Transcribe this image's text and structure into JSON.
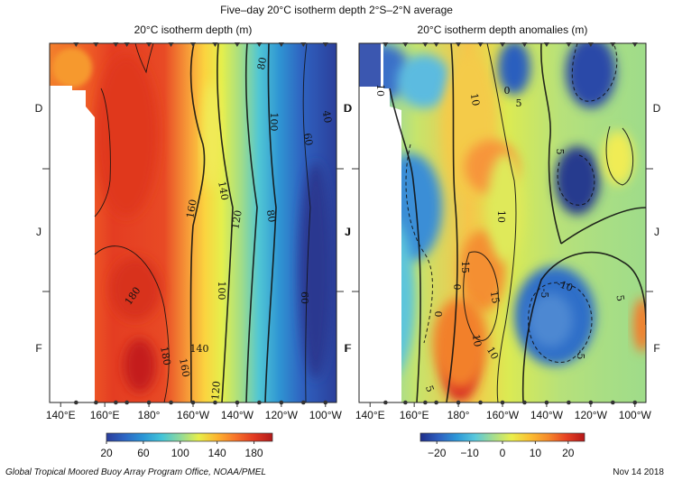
{
  "chart_data": [
    {
      "type": "heatmap",
      "title": "20°C isotherm depth (m)",
      "x_tick_labels": [
        "140°E",
        "160°E",
        "180°",
        "160°W",
        "140°W",
        "120°W",
        "100°W"
      ],
      "x_ticks_lon_east": [
        140,
        160,
        180,
        200,
        220,
        240,
        260
      ],
      "xlim_lon_east": [
        135,
        265
      ],
      "y_tick_labels": [
        "D",
        "J",
        "F"
      ],
      "colorbar": {
        "ticks": [
          20,
          60,
          100,
          140,
          180
        ],
        "range": [
          20,
          200
        ],
        "colors": [
          "#2b3d9b",
          "#2d66c4",
          "#2a96d6",
          "#43c4d8",
          "#8fd99b",
          "#e7ef4a",
          "#fdb42f",
          "#f7732a",
          "#e23a22",
          "#b21a1a"
        ]
      },
      "contour_labels": [
        "180",
        "180",
        "160",
        "160",
        "140",
        "140",
        "120",
        "120",
        "100",
        "100",
        "80",
        "80",
        "60",
        "60",
        "40"
      ]
    },
    {
      "type": "heatmap",
      "title": "20°C isotherm depth anomalies (m)",
      "x_tick_labels": [
        "140°E",
        "160°E",
        "180°",
        "160°W",
        "140°W",
        "120°W",
        "100°W"
      ],
      "x_ticks_lon_east": [
        140,
        160,
        180,
        200,
        220,
        240,
        260
      ],
      "xlim_lon_east": [
        135,
        265
      ],
      "y_tick_labels": [
        "D",
        "J",
        "F"
      ],
      "colorbar": {
        "ticks": [
          -20,
          -10,
          0,
          10,
          20
        ],
        "range": [
          -25,
          25
        ],
        "colors": [
          "#1f2e8a",
          "#2e5fc0",
          "#2d98d8",
          "#59c8dc",
          "#a5dd8e",
          "#eaef4c",
          "#fbbf32",
          "#f68a2b",
          "#e74224",
          "#b51718"
        ]
      },
      "contour_labels": [
        "10",
        "10",
        "10",
        "15",
        "15",
        "10",
        "10",
        "5",
        "5",
        "5",
        "0",
        "0",
        "-5",
        "-5",
        "-10",
        "5",
        "0"
      ]
    }
  ],
  "header": {
    "main_title": "Five–day 20°C isotherm depth 2°S–2°N average"
  },
  "footer": {
    "credit": "Global Tropical Moored Buoy Array Program Office, NOAA/PMEL",
    "date": "Nov 14 2018"
  }
}
